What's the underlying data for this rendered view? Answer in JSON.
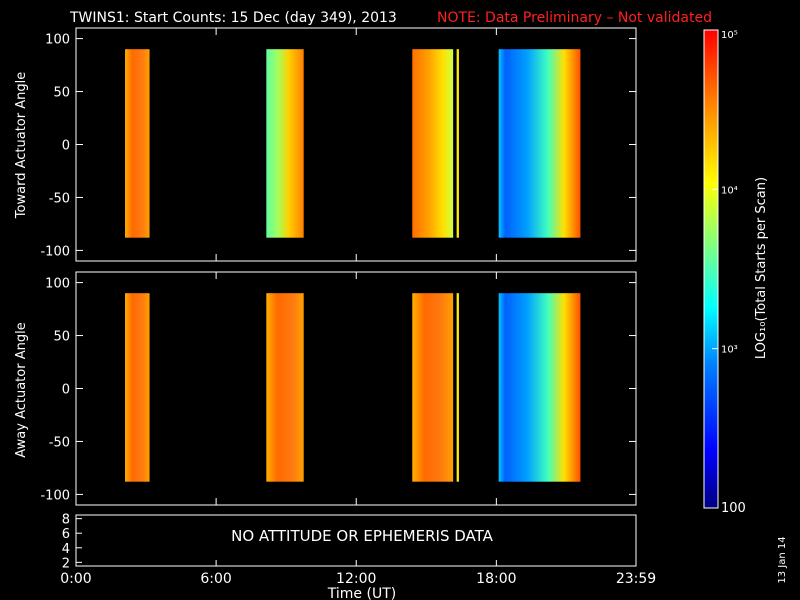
{
  "header": {
    "title": "TWINS1: Start Counts: 15 Dec (day 349), 2013",
    "note": "NOTE: Data Preliminary – Not validated",
    "note_color": "#ff2020"
  },
  "side_label": "13 Jan 14",
  "chart_data": [
    {
      "type": "heatmap",
      "panel": "top",
      "ylabel": "Toward Actuator Angle",
      "ylim": [
        -110,
        110
      ],
      "yticks": [
        "100",
        "50",
        "0",
        "-50",
        "-100"
      ],
      "ytick_values": [
        100,
        50,
        0,
        -50,
        -100
      ],
      "xlim_hours": [
        0,
        23.98
      ],
      "angle_range": [
        -88,
        90
      ],
      "blocks": [
        {
          "t_start": 2.1,
          "t_end": 3.15,
          "color_scheme": "orange-hot",
          "log10_counts_approx": 4.6
        },
        {
          "t_start": 8.15,
          "t_end": 9.75,
          "color_scheme": "green-to-orange",
          "log10_counts_approx": 4.2
        },
        {
          "t_start": 14.4,
          "t_end": 16.15,
          "color_scheme": "orange-to-yellow",
          "log10_counts_approx": 4.4
        },
        {
          "t_start": 16.3,
          "t_end": 16.4,
          "color_scheme": "yellow-line",
          "log10_counts_approx": 4.0
        },
        {
          "t_start": 18.1,
          "t_end": 21.6,
          "color_scheme": "blue-to-orange",
          "log10_counts_approx": 3.4
        }
      ]
    },
    {
      "type": "heatmap",
      "panel": "bottom",
      "ylabel": "Away Actuator Angle",
      "ylim": [
        -110,
        110
      ],
      "yticks": [
        "100",
        "50",
        "0",
        "-50",
        "-100"
      ],
      "ytick_values": [
        100,
        50,
        0,
        -50,
        -100
      ],
      "xlim_hours": [
        0,
        23.98
      ],
      "angle_range": [
        -88,
        90
      ],
      "blocks": [
        {
          "t_start": 2.1,
          "t_end": 3.15,
          "color_scheme": "orange-hot",
          "log10_counts_approx": 4.6
        },
        {
          "t_start": 8.15,
          "t_end": 9.75,
          "color_scheme": "orange-hot",
          "log10_counts_approx": 4.6
        },
        {
          "t_start": 14.4,
          "t_end": 16.15,
          "color_scheme": "orange-hot",
          "log10_counts_approx": 4.6
        },
        {
          "t_start": 16.3,
          "t_end": 16.4,
          "color_scheme": "yellow-line",
          "log10_counts_approx": 4.0
        },
        {
          "t_start": 18.1,
          "t_end": 21.6,
          "color_scheme": "blue-to-orange",
          "log10_counts_approx": 3.4
        }
      ]
    },
    {
      "type": "line",
      "panel": "ephemeris",
      "ylim": [
        1.5,
        8.5
      ],
      "yticks": [
        "8",
        "6",
        "4",
        "2"
      ],
      "ytick_values": [
        8,
        6,
        4,
        2
      ],
      "message": "NO ATTITUDE OR EPHEMERIS DATA",
      "xlabel": "Time (UT)",
      "xticks": [
        "0:00",
        "6:00",
        "12:00",
        "18:00",
        "23:59"
      ],
      "xtick_hours": [
        0,
        6,
        12,
        18,
        23.98
      ]
    }
  ],
  "colorbar": {
    "label": "LOG₁₀(Total Starts per Scan)",
    "tick_labels": [
      "10⁵",
      "10⁴",
      "10³",
      "100"
    ],
    "tick_log_values": [
      5,
      4,
      3,
      2
    ],
    "range_log": [
      2,
      5
    ],
    "colors": [
      "#000080",
      "#0000ff",
      "#0080ff",
      "#00ffff",
      "#80ff80",
      "#ffff00",
      "#ff8000",
      "#ff0000"
    ]
  }
}
